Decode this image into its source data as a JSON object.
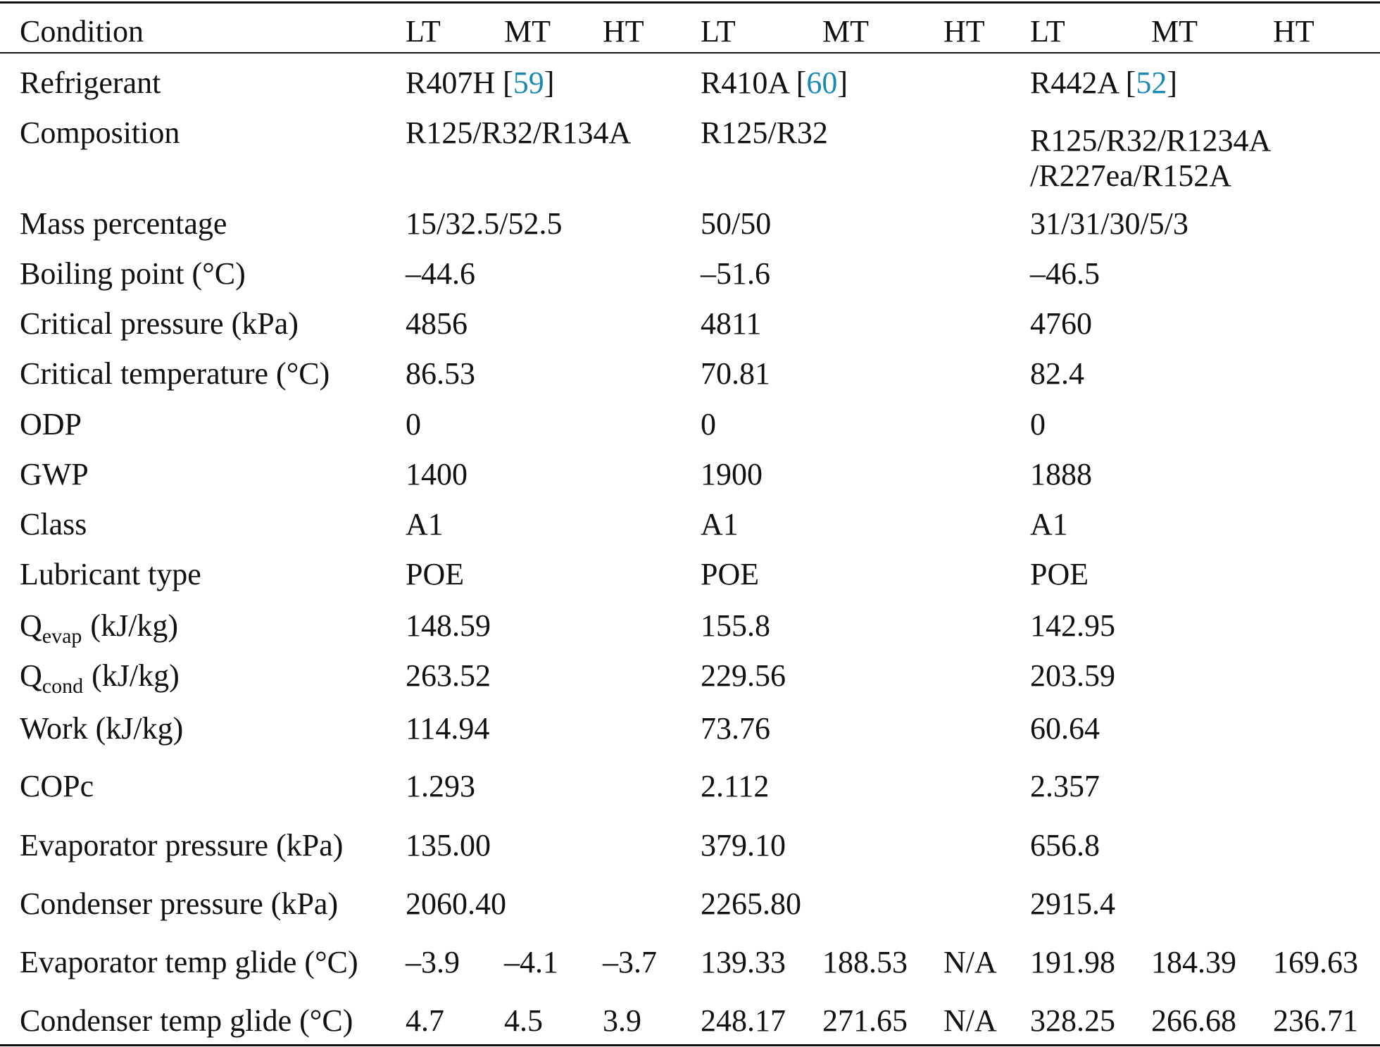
{
  "table": {
    "header": [
      "Condition",
      "LT",
      "MT",
      "HT",
      "LT",
      "MT",
      "HT",
      "LT",
      "MT",
      "HT"
    ],
    "rows": [
      {
        "label": "Refrigerant",
        "values": [
          {
            "name": "R407H [",
            "ref": "59",
            "close": "]"
          },
          {
            "name": "R410A [",
            "ref": "60",
            "close": "]"
          },
          {
            "name": "R442A [",
            "ref": "52",
            "close": "]"
          }
        ]
      },
      {
        "label": "Composition",
        "values": [
          "R125/R32/R134A",
          "R125/R32",
          {
            "lines": [
              "R125/R32/R1234A",
              "/R227ea/R152A"
            ]
          }
        ]
      },
      {
        "label": "Mass percentage",
        "values": [
          "15/32.5/52.5",
          "50/50",
          "31/31/30/5/3"
        ]
      },
      {
        "label": "Boiling point (°C)",
        "values": [
          "–44.6",
          "–51.6",
          "–46.5"
        ]
      },
      {
        "label": "Critical pressure (kPa)",
        "values": [
          "4856",
          "4811",
          "4760"
        ]
      },
      {
        "label": "Critical temperature (°C)",
        "values": [
          "86.53",
          "70.81",
          "82.4"
        ]
      },
      {
        "label": "ODP",
        "values": [
          "0",
          "0",
          "0"
        ]
      },
      {
        "label": "GWP",
        "values": [
          "1400",
          "1900",
          "1888"
        ]
      },
      {
        "label": "Class",
        "values": [
          "A1",
          "A1",
          "A1"
        ]
      },
      {
        "label": "Lubricant type",
        "values": [
          "POE",
          "POE",
          "POE"
        ]
      },
      {
        "label": {
          "text": "Q",
          "sub": "evap",
          "unit": "(kJ/kg)"
        },
        "values": [
          "148.59",
          "155.8",
          "142.95"
        ]
      },
      {
        "label": {
          "text": "Q",
          "sub": "cond",
          "unit": "(kJ/kg)"
        },
        "values": [
          "263.52",
          "229.56",
          "203.59"
        ]
      },
      {
        "label": "Work (kJ/kg)",
        "values": [
          "114.94",
          "73.76",
          "60.64"
        ]
      },
      {
        "label": "COPc",
        "values": [
          "1.293",
          "2.112",
          "2.357"
        ]
      },
      {
        "label": "Evaporator pressure (kPa)",
        "values": [
          "135.00",
          "379.10",
          "656.8"
        ]
      },
      {
        "label": "Condenser pressure (kPa)",
        "values": [
          "2060.40",
          "2265.80",
          "2915.4"
        ]
      },
      {
        "label": "Evaporator temp glide (°C)",
        "values": [
          "–3.9",
          "–4.1",
          "–3.7",
          "139.33",
          "188.53",
          "N/A",
          "191.98",
          "184.39",
          "169.63"
        ]
      },
      {
        "label": "Condenser temp glide (°C)",
        "values": [
          "4.7",
          "4.5",
          "3.9",
          "248.17",
          "271.65",
          "N/A",
          "328.25",
          "266.68",
          "236.71"
        ]
      }
    ]
  }
}
